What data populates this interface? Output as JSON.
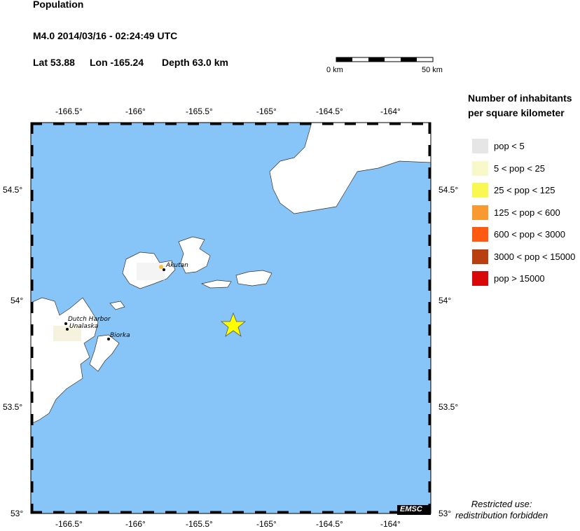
{
  "header": {
    "title": "Population",
    "event": "M4.0  2014/03/16 - 02:24:49 UTC",
    "lat": "Lat 53.88",
    "lon": "Lon -165.24",
    "depth": "Depth  63.0 km"
  },
  "scale_bar": {
    "start": "0 km",
    "end": "50 km"
  },
  "map": {
    "lon_ticks": [
      "-166.5°",
      "-166°",
      "-165.5°",
      "-165°",
      "-164.5°",
      "-164°"
    ],
    "lat_ticks": [
      "54.5°",
      "54°",
      "53.5°",
      "53°"
    ],
    "epicenter": {
      "lat": 53.88,
      "lon": -165.24,
      "icon": "star-icon",
      "color": "#ffff00"
    },
    "places": [
      "Akutan",
      "Dutch Harbor",
      "Unalaska",
      "Biorka"
    ],
    "sea_color": "#87c5f8",
    "land_color": "#ffffff",
    "badge": "EMSC"
  },
  "legend": {
    "title_line1": "Number of inhabitants",
    "title_line2": "per square kilometer",
    "items": [
      {
        "label": "pop < 5",
        "color": "#e6e6e6"
      },
      {
        "label": "5 < pop < 25",
        "color": "#f8f8c8"
      },
      {
        "label": "25 < pop < 125",
        "color": "#f8f850"
      },
      {
        "label": "125 < pop < 600",
        "color": "#f89a30"
      },
      {
        "label": "600 < pop < 3000",
        "color": "#fe5a10"
      },
      {
        "label": "3000 < pop < 15000",
        "color": "#b84010"
      },
      {
        "label": "pop > 15000",
        "color": "#d80808"
      }
    ]
  },
  "notice": {
    "line1": "Restricted use:",
    "line2": "redistribution forbidden"
  }
}
